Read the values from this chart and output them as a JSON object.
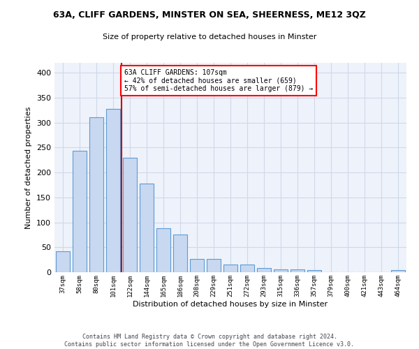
{
  "title1": "63A, CLIFF GARDENS, MINSTER ON SEA, SHEERNESS, ME12 3QZ",
  "title2": "Size of property relative to detached houses in Minster",
  "xlabel": "Distribution of detached houses by size in Minster",
  "ylabel": "Number of detached properties",
  "categories": [
    "37sqm",
    "58sqm",
    "80sqm",
    "101sqm",
    "122sqm",
    "144sqm",
    "165sqm",
    "186sqm",
    "208sqm",
    "229sqm",
    "251sqm",
    "272sqm",
    "293sqm",
    "315sqm",
    "336sqm",
    "357sqm",
    "379sqm",
    "400sqm",
    "421sqm",
    "443sqm",
    "464sqm"
  ],
  "values": [
    42,
    243,
    311,
    328,
    229,
    178,
    88,
    75,
    26,
    26,
    16,
    16,
    8,
    5,
    5,
    4,
    0,
    0,
    0,
    0,
    4
  ],
  "bar_color": "#c8d8f0",
  "bar_edge_color": "#5b9bd5",
  "red_line_x": 3.5,
  "annotation_text": "63A CLIFF GARDENS: 107sqm\n← 42% of detached houses are smaller (659)\n57% of semi-detached houses are larger (879) →",
  "annotation_box_color": "white",
  "annotation_box_edge_color": "red",
  "red_line_color": "#cc0000",
  "grid_color": "#d0d8e8",
  "background_color": "#eef2fa",
  "footer_line1": "Contains HM Land Registry data © Crown copyright and database right 2024.",
  "footer_line2": "Contains public sector information licensed under the Open Government Licence v3.0.",
  "ylim": [
    0,
    420
  ],
  "yticks": [
    0,
    50,
    100,
    150,
    200,
    250,
    300,
    350,
    400
  ],
  "figsize": [
    6.0,
    5.0
  ],
  "dpi": 100
}
